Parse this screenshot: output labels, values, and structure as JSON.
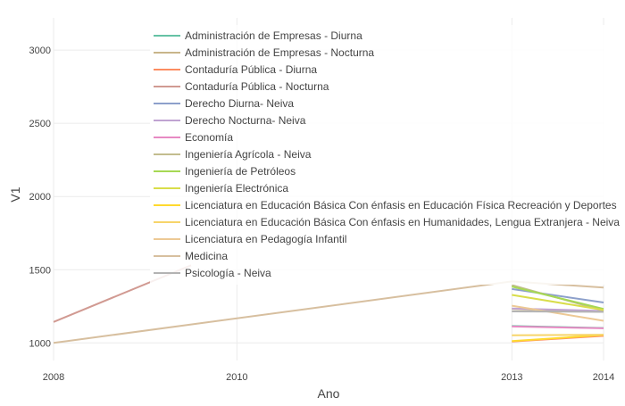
{
  "chart_data": {
    "type": "line",
    "xlabel": "Ano",
    "ylabel": "V1",
    "xlim": [
      2008,
      2014
    ],
    "ylim": [
      880,
      3220
    ],
    "x_ticks": [
      2008,
      2010,
      2013,
      2014
    ],
    "y_ticks": [
      1000,
      1500,
      2000,
      2500,
      3000
    ],
    "grid": true,
    "legend_position": "top-left-inside",
    "series": [
      {
        "name": "Administración de Empresas - Diurna",
        "color": "#66c2a5",
        "x": [
          2013,
          2014
        ],
        "y": [
          1115,
          1102
        ]
      },
      {
        "name": "Administración de Empresas - Nocturna",
        "color": "#c8b58a",
        "x": [
          2013,
          2014
        ],
        "y": [
          1232,
          1212
        ]
      },
      {
        "name": "Contaduría Pública - Diurna",
        "color": "#fc8d62",
        "x": [
          2013,
          2014
        ],
        "y": [
          1010,
          1048
        ]
      },
      {
        "name": "Contaduría Pública - Nocturna",
        "color": "#d19a92",
        "x": [
          2008,
          2009.5
        ],
        "y": [
          1143,
          1530
        ]
      },
      {
        "name": "Derecho  Diurna- Neiva",
        "color": "#8da0cb",
        "x": [
          2013,
          2014
        ],
        "y": [
          1368,
          1276
        ]
      },
      {
        "name": "Derecho Nocturna- Neiva",
        "color": "#c0a3d2",
        "x": [
          2013,
          2014
        ],
        "y": [
          1235,
          1218
        ]
      },
      {
        "name": "Economía",
        "color": "#e78ac3",
        "x": [
          2013,
          2014
        ],
        "y": [
          1112,
          1100
        ]
      },
      {
        "name": "Ingeniería Agrícola - Neiva",
        "color": "#c3bd8f",
        "x": [
          2013,
          2014
        ],
        "y": [
          1395,
          1220
        ]
      },
      {
        "name": "Ingeniería de Petróleos",
        "color": "#a6d854",
        "x": [
          2013,
          2014
        ],
        "y": [
          1385,
          1232
        ]
      },
      {
        "name": "Ingeniería Electrónica",
        "color": "#d9dd4a",
        "x": [
          2013,
          2014
        ],
        "y": [
          1328,
          1225
        ]
      },
      {
        "name": "Licenciatura en Educación Básica Con énfasis en Educación Física Recreación y Deportes",
        "color": "#ffd92f",
        "x": [
          2013,
          2014
        ],
        "y": [
          1012,
          1054
        ]
      },
      {
        "name": "Licenciatura en Educación Básica Con énfasis en Humanidades, Lengua Extranjera - Neiva",
        "color": "#f7d56a",
        "x": [
          2013,
          2014
        ],
        "y": [
          1052,
          1056
        ]
      },
      {
        "name": "Licenciatura en Pedagogía Infantil",
        "color": "#edc995",
        "x": [
          2013,
          2014
        ],
        "y": [
          1254,
          1151
        ]
      },
      {
        "name": "Medicina",
        "color": "#d7bf9f",
        "x": [
          2008,
          2013,
          2014
        ],
        "y": [
          1000,
          1420,
          1378
        ]
      },
      {
        "name": "Psicología - Neiva",
        "color": "#b3b3b3",
        "x": [
          2013,
          2014
        ],
        "y": [
          1215,
          1212
        ]
      }
    ]
  }
}
